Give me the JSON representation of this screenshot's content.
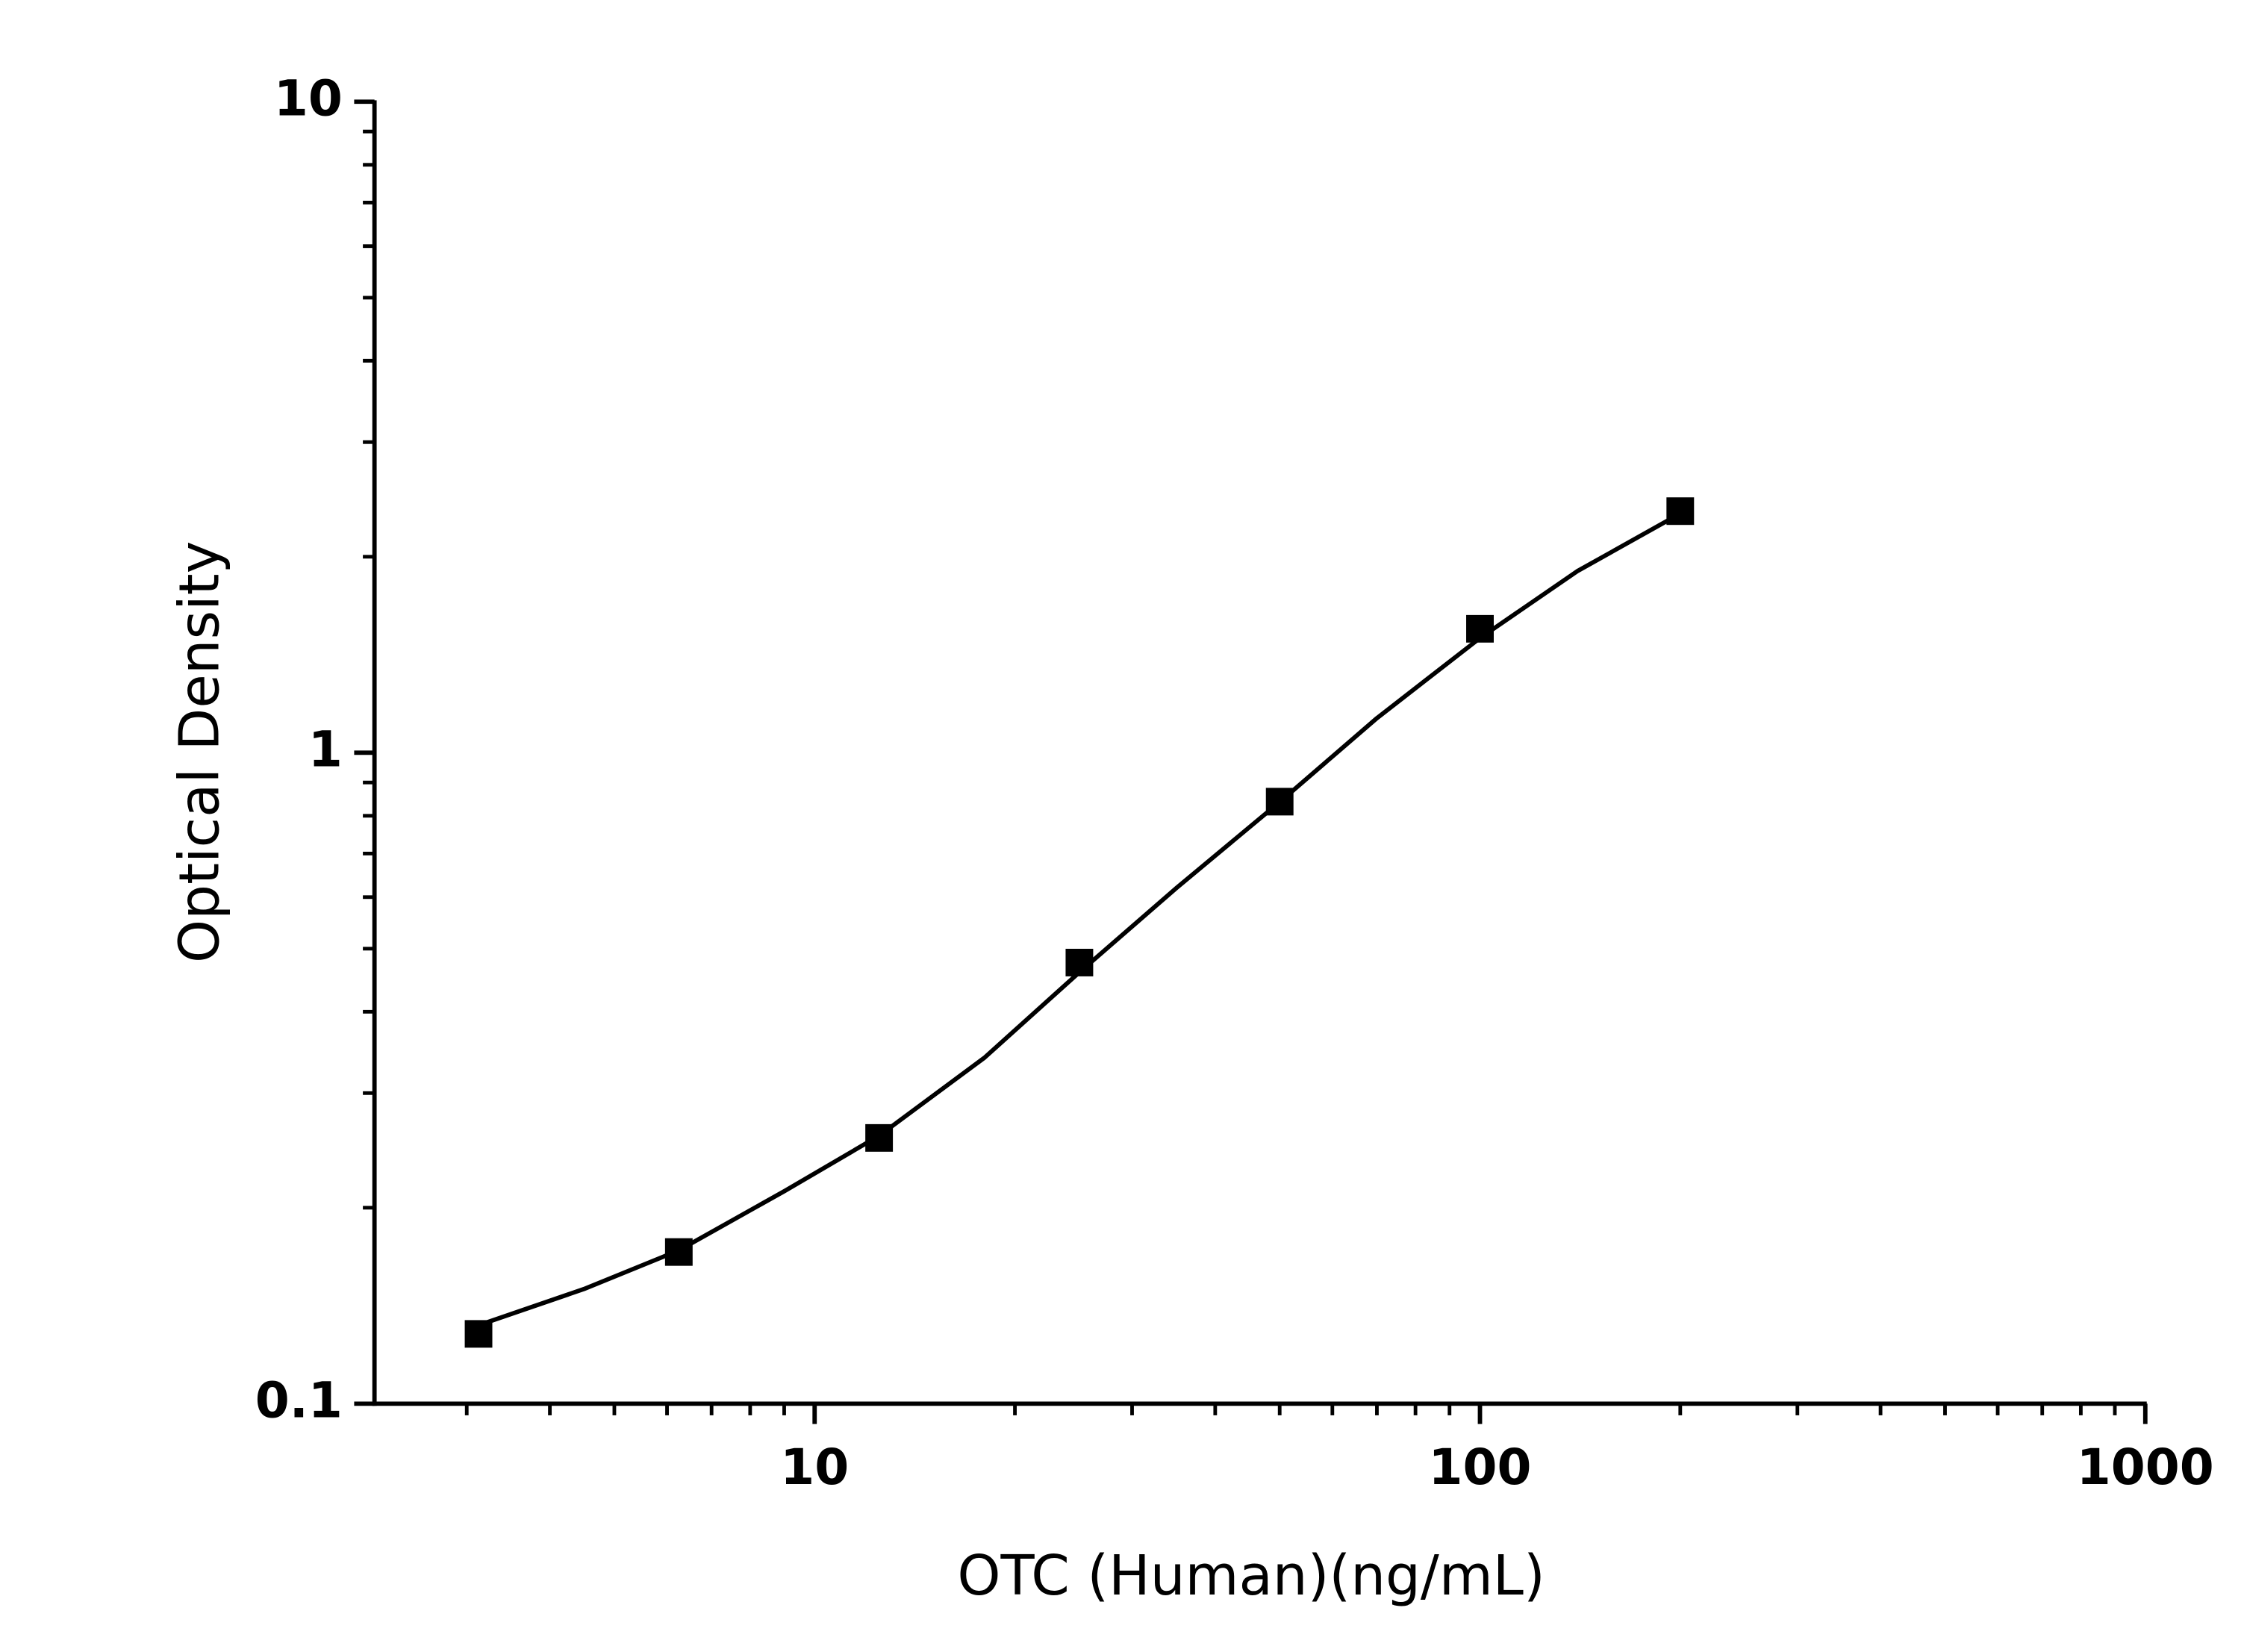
{
  "chart_data": {
    "type": "scatter",
    "x_label": "OTC (Human)(ng/mL)",
    "y_label": "Optical Density",
    "x": [
      3.125,
      6.25,
      12.5,
      25,
      50,
      100,
      200
    ],
    "series": [
      {
        "color": "#000000",
        "values": [
          0.128,
          0.171,
          0.256,
          0.476,
          0.841,
          1.55,
          2.35
        ]
      }
    ],
    "curve": {
      "color": "#000000",
      "x": [
        3.125,
        4.5,
        6.25,
        9,
        12.5,
        18,
        25,
        35,
        50,
        70,
        100,
        140,
        200
      ],
      "y": [
        0.132,
        0.15,
        0.172,
        0.212,
        0.258,
        0.34,
        0.46,
        0.62,
        0.84,
        1.13,
        1.5,
        1.9,
        2.33
      ]
    },
    "xlog": true,
    "ylog": true,
    "xlim": [
      2.18,
      1000
    ],
    "ylim": [
      0.1,
      10
    ],
    "xticks": [
      10,
      100,
      1000
    ],
    "yticks": [
      0.1,
      1,
      10
    ],
    "xminorticks": [
      3,
      4,
      5,
      6,
      7,
      8,
      9,
      20,
      30,
      40,
      50,
      60,
      70,
      80,
      90,
      200,
      300,
      400,
      500,
      600,
      700,
      800,
      900
    ],
    "yminorticks": [
      0.2,
      0.3,
      0.4,
      0.5,
      0.6,
      0.7,
      0.8,
      0.9,
      2,
      3,
      4,
      5,
      6,
      7,
      8,
      9
    ],
    "grid": false
  }
}
